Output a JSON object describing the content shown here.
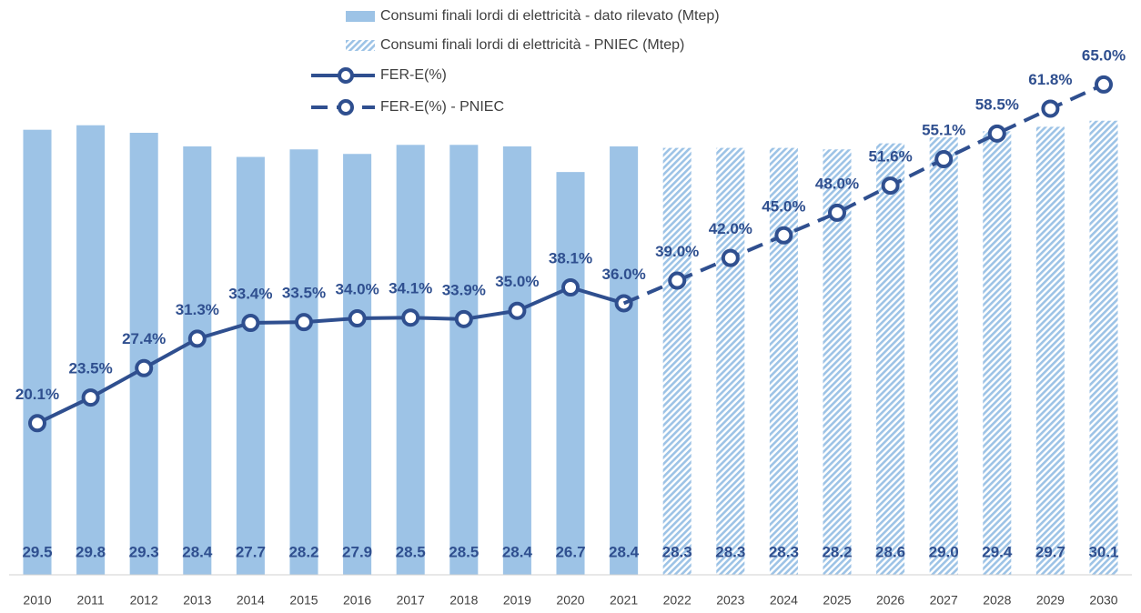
{
  "chart_data": {
    "type": "combo",
    "categories": [
      "2010",
      "2011",
      "2012",
      "2013",
      "2014",
      "2015",
      "2016",
      "2017",
      "2018",
      "2019",
      "2020",
      "2021",
      "2022",
      "2023",
      "2024",
      "2025",
      "2026",
      "2027",
      "2028",
      "2029",
      "2030"
    ],
    "ylim": [
      0,
      37.5
    ],
    "y2lim": [
      0,
      75
    ],
    "series": [
      {
        "name": "Consumi finali lordi di elettricità - dato rilevato (Mtep)",
        "type": "bar",
        "color": "#9dc3e6",
        "values": [
          29.5,
          29.8,
          29.3,
          28.4,
          27.7,
          28.2,
          27.9,
          28.5,
          28.5,
          28.4,
          26.7,
          28.4,
          null,
          null,
          null,
          null,
          null,
          null,
          null,
          null,
          null
        ],
        "value_labels": [
          "29.5",
          "29.8",
          "29.3",
          "28.4",
          "27.7",
          "28.2",
          "27.9",
          "28.5",
          "28.5",
          "28.4",
          "26.7",
          "28.4",
          null,
          null,
          null,
          null,
          null,
          null,
          null,
          null,
          null
        ]
      },
      {
        "name": "Consumi finali lordi di elettricità - PNIEC (Mtep)",
        "type": "bar",
        "color": "#9dc3e6",
        "pattern": "hatch",
        "values": [
          null,
          null,
          null,
          null,
          null,
          null,
          null,
          null,
          null,
          null,
          null,
          null,
          28.3,
          28.3,
          28.3,
          28.2,
          28.6,
          29.0,
          29.4,
          29.7,
          30.1
        ],
        "value_labels": [
          null,
          null,
          null,
          null,
          null,
          null,
          null,
          null,
          null,
          null,
          null,
          null,
          "28.3",
          "28.3",
          "28.3",
          "28.2",
          "28.6",
          "29.0",
          "29.4",
          "29.7",
          "30.1"
        ]
      },
      {
        "name": "FER-E(%)",
        "type": "line",
        "axis": "y2",
        "color": "#2f4f8f",
        "values": [
          20.1,
          23.5,
          27.4,
          31.3,
          33.4,
          33.5,
          34.0,
          34.1,
          33.9,
          35.0,
          38.1,
          36.0,
          null,
          null,
          null,
          null,
          null,
          null,
          null,
          null,
          null
        ],
        "value_labels": [
          "20.1%",
          "23.5%",
          "27.4%",
          "31.3%",
          "33.4%",
          "33.5%",
          "34.0%",
          "34.1%",
          "33.9%",
          "35.0%",
          "38.1%",
          "36.0%",
          null,
          null,
          null,
          null,
          null,
          null,
          null,
          null,
          null
        ]
      },
      {
        "name": "FER-E(%) - PNIEC",
        "type": "line",
        "axis": "y2",
        "color": "#2f4f8f",
        "dashed": true,
        "values": [
          null,
          null,
          null,
          null,
          null,
          null,
          null,
          null,
          null,
          null,
          null,
          null,
          39.0,
          42.0,
          45.0,
          48.0,
          51.6,
          55.1,
          58.5,
          61.8,
          65.0
        ],
        "value_labels": [
          null,
          null,
          null,
          null,
          null,
          null,
          null,
          null,
          null,
          null,
          null,
          null,
          "39.0%",
          "42.0%",
          "45.0%",
          "48.0%",
          "51.6%",
          "55.1%",
          "58.5%",
          "61.8%",
          "65.0%"
        ]
      }
    ]
  }
}
